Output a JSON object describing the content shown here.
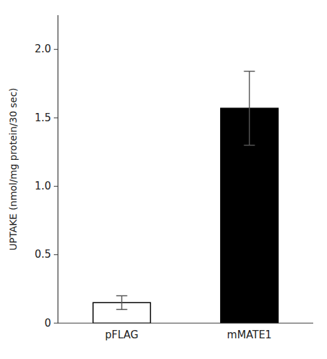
{
  "chart_data": {
    "type": "bar",
    "categories": [
      "pFLAG",
      "mMATE1"
    ],
    "values": [
      0.15,
      1.57
    ],
    "errors": [
      0.05,
      0.27
    ],
    "colors": [
      "#ffffff",
      "#000000"
    ],
    "ylabel": "UPTAKE (nmol/mg protein/30 sec)",
    "ylim": [
      0,
      2.25
    ],
    "yticks": [
      0,
      0.5,
      {
        "value": 1.0,
        "label": "1.0"
      },
      1.5,
      {
        "value": 2.0,
        "label": "2.0"
      }
    ],
    "grid": false
  }
}
